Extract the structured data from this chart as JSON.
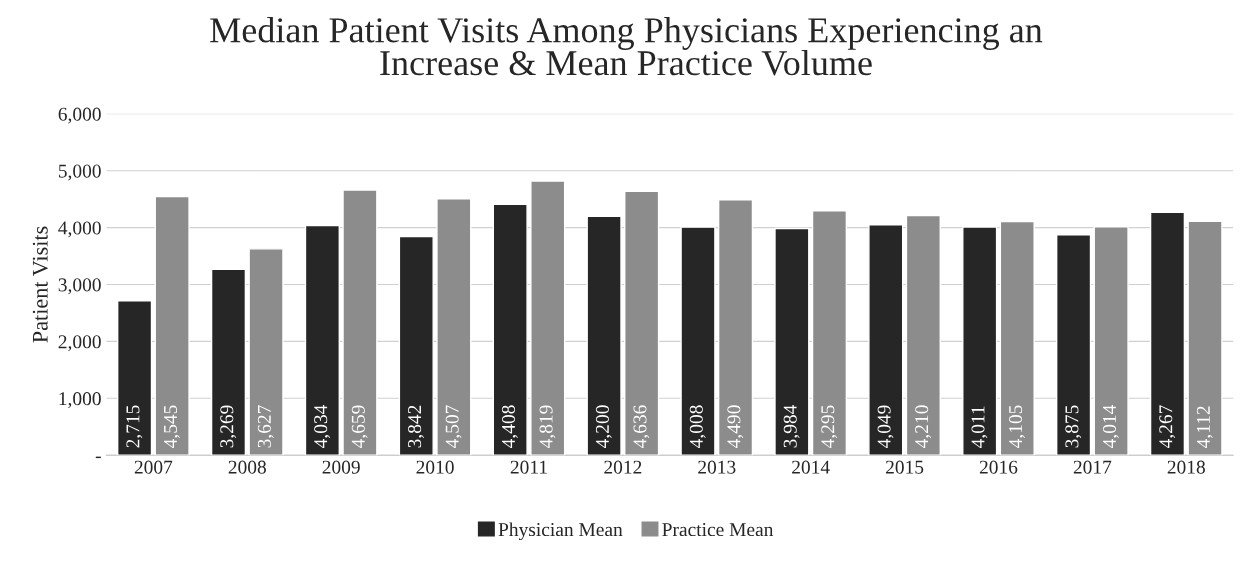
{
  "chart_data": {
    "type": "bar",
    "title": "Median Patient Visits Among Physicians Experiencing an\nIncrease & Mean Practice Volume",
    "ylabel": "Patient Visits",
    "categories": [
      "2007",
      "2008",
      "2009",
      "2010",
      "2011",
      "2012",
      "2013",
      "2014",
      "2015",
      "2016",
      "2017",
      "2018"
    ],
    "series": [
      {
        "name": "Physician Mean",
        "color": "#262626",
        "values": [
          2715,
          3269,
          4034,
          3842,
          4408,
          4200,
          4008,
          3984,
          4049,
          4011,
          3875,
          4267
        ],
        "value_labels": [
          "2,715",
          "3,269",
          "4,034",
          "3,842",
          "4,408",
          "4,200",
          "4,008",
          "3,984",
          "4,049",
          "4,011",
          "3,875",
          "4,267"
        ]
      },
      {
        "name": "Practice Mean",
        "color": "#8c8c8c",
        "values": [
          4545,
          3627,
          4659,
          4507,
          4819,
          4636,
          4490,
          4295,
          4210,
          4105,
          4014,
          4112
        ],
        "value_labels": [
          "4,545",
          "3,627",
          "4,659",
          "4,507",
          "4,819",
          "4,636",
          "4,490",
          "4,295",
          "4,210",
          "4,105",
          "4,014",
          "4,112"
        ]
      }
    ],
    "ylim": [
      0,
      6000
    ],
    "yticks": [
      {
        "value": 0,
        "label": "-"
      },
      {
        "value": 1000,
        "label": "1,000"
      },
      {
        "value": 2000,
        "label": "2,000"
      },
      {
        "value": 3000,
        "label": "3,000"
      },
      {
        "value": 4000,
        "label": "4,000"
      },
      {
        "value": 5000,
        "label": "5,000"
      },
      {
        "value": 6000,
        "label": "6,000"
      }
    ],
    "grid": "y",
    "legend": "bottom"
  }
}
